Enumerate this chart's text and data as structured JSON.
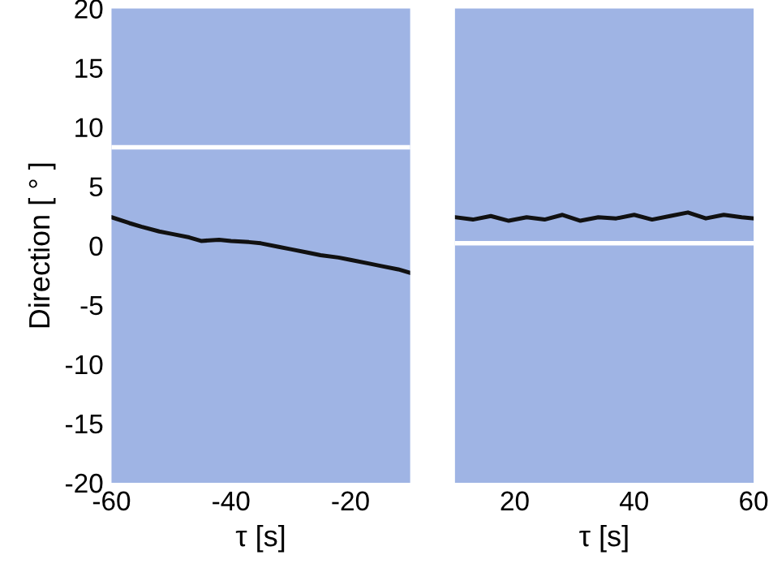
{
  "chart_data": [
    {
      "type": "line",
      "xlabel": "τ [s]",
      "ylabel": "Direction [ ° ]",
      "xlim": [
        -60,
        -10
      ],
      "ylim": [
        -20,
        20
      ],
      "xticks": [
        -60,
        -40,
        -20
      ],
      "yticks": [
        -20,
        -15,
        -10,
        -5,
        0,
        5,
        10,
        15,
        20
      ],
      "series": [
        {
          "color": "#111111",
          "x": [
            -60,
            -57,
            -55,
            -52,
            -50,
            -47,
            -45,
            -42,
            -40,
            -37,
            -35,
            -32,
            -30,
            -27,
            -25,
            -22,
            -20,
            -17,
            -15,
            -12,
            -10
          ],
          "values": [
            2.4,
            1.9,
            1.6,
            1.2,
            1.0,
            0.7,
            0.4,
            0.5,
            0.4,
            0.3,
            0.2,
            -0.1,
            -0.3,
            -0.6,
            -0.8,
            -1.0,
            -1.2,
            -1.5,
            -1.7,
            -2.0,
            -2.3
          ]
        }
      ],
      "ref_lines": [
        {
          "axis": "y",
          "value": 8.3,
          "color": "#ffffff"
        }
      ]
    },
    {
      "type": "line",
      "xlabel": "τ [s]",
      "xlim": [
        10,
        60
      ],
      "ylim": [
        -20,
        20
      ],
      "xticks": [
        20,
        40,
        60
      ],
      "yticks": [
        -20,
        -15,
        -10,
        -5,
        0,
        5,
        10,
        15,
        20
      ],
      "tick_labels": "x",
      "series": [
        {
          "color": "#111111",
          "x": [
            10,
            13,
            16,
            19,
            22,
            25,
            28,
            31,
            34,
            37,
            40,
            43,
            46,
            49,
            52,
            55,
            58,
            60
          ],
          "values": [
            2.4,
            2.2,
            2.5,
            2.1,
            2.4,
            2.2,
            2.6,
            2.1,
            2.4,
            2.3,
            2.6,
            2.2,
            2.5,
            2.8,
            2.3,
            2.6,
            2.4,
            2.3
          ]
        }
      ],
      "ref_lines": [
        {
          "axis": "y",
          "value": 0.2,
          "color": "#ffffff"
        }
      ]
    }
  ]
}
